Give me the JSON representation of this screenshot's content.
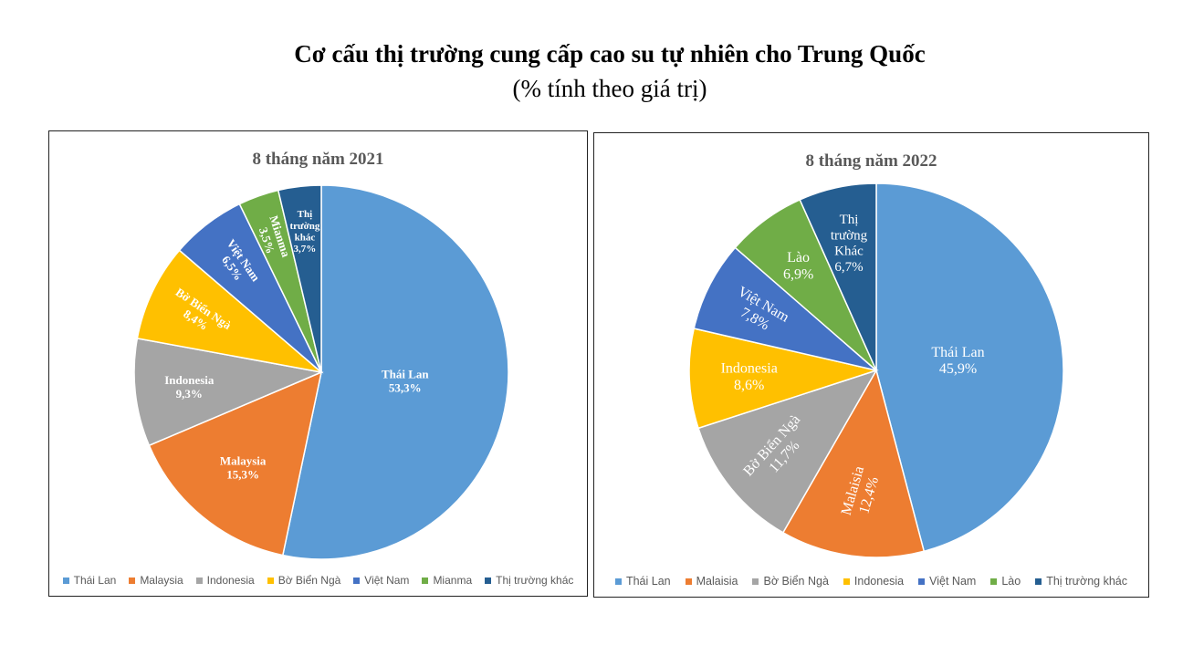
{
  "title": "Cơ cấu thị trường cung cấp cao su tự nhiên cho Trung Quốc",
  "subtitle": "(% tính theo giá trị)",
  "chart_data": [
    {
      "type": "pie",
      "title": "8 tháng năm 2021",
      "unit": "%",
      "slices": [
        {
          "label": "Thái Lan",
          "value": 53.3,
          "display": "53,3%",
          "color": "#5B9BD5"
        },
        {
          "label": "Malaysia",
          "value": 15.3,
          "display": "15,3%",
          "color": "#ED7D31"
        },
        {
          "label": "Indonesia",
          "value": 9.3,
          "display": "9,3%",
          "color": "#A5A5A5"
        },
        {
          "label": "Bờ Biển Ngà",
          "value": 8.4,
          "display": "8,4%",
          "color": "#FFC000"
        },
        {
          "label": "Việt Nam",
          "value": 6.5,
          "display": "6,5%",
          "color": "#4472C4"
        },
        {
          "label": "Mianma",
          "value": 3.5,
          "display": "3,5%",
          "color": "#70AD47"
        },
        {
          "label": "Thị trường khác",
          "value": 3.7,
          "display": "3,7%",
          "color": "#255E91"
        }
      ],
      "legend": [
        "Thái Lan",
        "Malaysia",
        "Indonesia",
        "Bờ Biển Ngà",
        "Việt Nam",
        "Mianma",
        "Thị trường khác"
      ],
      "legend_position": "bottom"
    },
    {
      "type": "pie",
      "title": "8 tháng năm 2022",
      "unit": "%",
      "slices": [
        {
          "label": "Thái Lan",
          "value": 45.9,
          "display": "45,9%",
          "color": "#5B9BD5"
        },
        {
          "label": "Malaisia",
          "value": 12.4,
          "display": "12,4%",
          "color": "#ED7D31"
        },
        {
          "label": "Bờ Biển Ngà",
          "value": 11.7,
          "display": "11,7%",
          "color": "#A5A5A5"
        },
        {
          "label": "Indonesia",
          "value": 8.6,
          "display": "8,6%",
          "color": "#FFC000"
        },
        {
          "label": "Việt Nam",
          "value": 7.8,
          "display": "7,8%",
          "color": "#4472C4"
        },
        {
          "label": "Lào",
          "value": 6.9,
          "display": "6,9%",
          "color": "#70AD47"
        },
        {
          "label": "Thị trường Khác",
          "value": 6.7,
          "display": "6,7%",
          "color": "#255E91"
        }
      ],
      "legend": [
        "Thái Lan",
        "Malaisia",
        "Bờ Biển Ngà",
        "Indonesia",
        "Việt Nam",
        "Lào",
        "Thị trường khác"
      ],
      "legend_position": "bottom"
    }
  ]
}
